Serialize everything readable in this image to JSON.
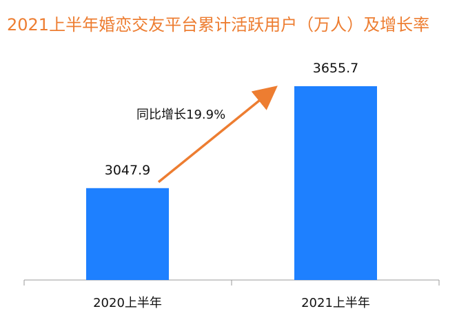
{
  "chart_data": {
    "type": "bar",
    "title": "2021上半年婚恋交友平台累计活跃用户（万人）及增长率",
    "categories": [
      "2020上半年",
      "2021上半年"
    ],
    "values": [
      3047.9,
      3655.7
    ],
    "value_labels": [
      "3047.9",
      "3655.7"
    ],
    "annotation": "同比增长19.9%",
    "ylim": [
      2500,
      3850
    ],
    "grid": false,
    "bar_color": "#1E80FF",
    "arrow_color": "#ED7D31",
    "title_color": "#ED7D31"
  }
}
